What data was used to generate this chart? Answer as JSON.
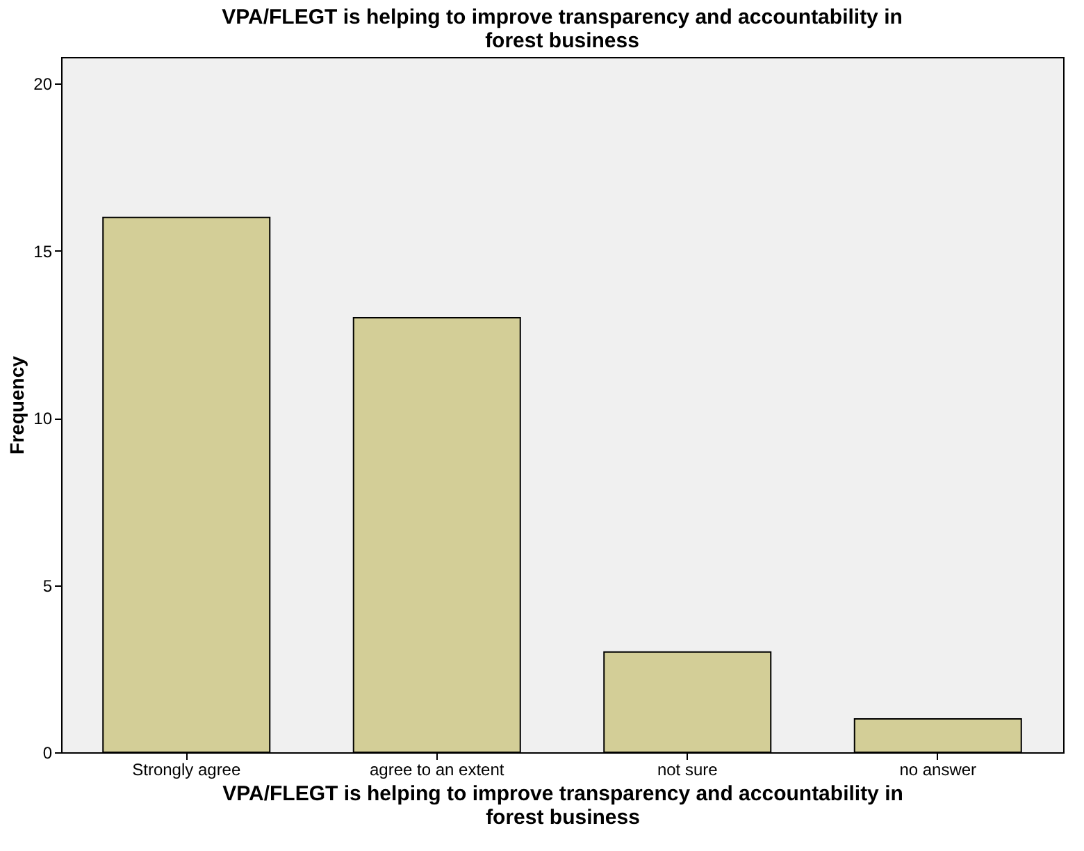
{
  "chart_data": {
    "type": "bar",
    "title": "VPA/FLEGT is helping to improve transparency and accountability in forest business",
    "xlabel": "VPA/FLEGT is helping to improve transparency and accountability in forest business",
    "ylabel": "Frequency",
    "categories": [
      "Strongly agree",
      "agree to an extent",
      "not sure",
      "no answer"
    ],
    "values": [
      16,
      13,
      3,
      1
    ],
    "color": "#d3ce97",
    "ylim": [
      0,
      20.8
    ],
    "yticks": [
      0,
      5,
      10,
      15,
      20
    ],
    "grid": false
  }
}
